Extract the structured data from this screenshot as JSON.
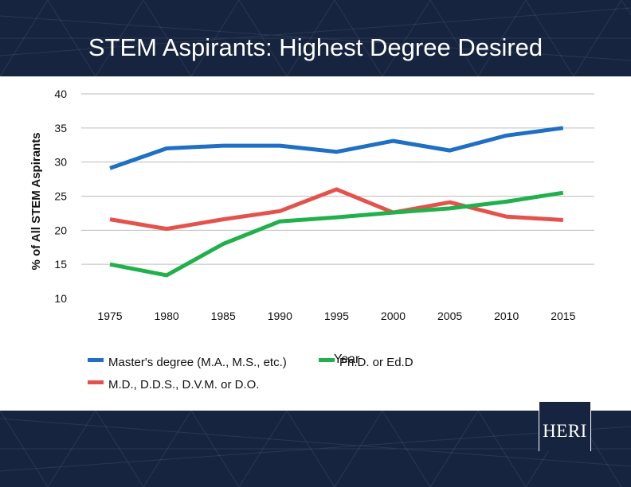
{
  "slide": {
    "logo_text": "HERI"
  },
  "colors": {
    "banner": "#17243f",
    "masters": "#1f6fc5",
    "phd": "#20b04c",
    "md": "#e4534b",
    "grid": "#bdbdbd"
  },
  "chart_data": {
    "type": "line",
    "title": "STEM Aspirants: Highest Degree Desired",
    "xlabel": "Year",
    "ylabel": "% of All STEM Aspirants",
    "categories": [
      "1975",
      "1980",
      "1985",
      "1990",
      "1995",
      "2000",
      "2005",
      "2010",
      "2015"
    ],
    "ylim": [
      10,
      40
    ],
    "yticks": [
      "10",
      "15",
      "20",
      "25",
      "30",
      "35",
      "40"
    ],
    "grid": true,
    "legend_position": "bottom",
    "series": [
      {
        "name": "Master's degree (M.A., M.S., etc.)",
        "color": "#1f6fc5",
        "values": [
          29.1,
          32.0,
          32.4,
          32.4,
          31.5,
          33.1,
          31.7,
          33.9,
          35.0
        ]
      },
      {
        "name": "Ph.D. or Ed.D",
        "color": "#20b04c",
        "values": [
          15.0,
          13.4,
          18.0,
          21.3,
          21.9,
          22.6,
          23.2,
          24.2,
          25.5
        ]
      },
      {
        "name": "M.D., D.D.S., D.V.M. or D.O.",
        "color": "#e4534b",
        "values": [
          21.6,
          20.2,
          21.6,
          22.8,
          26.0,
          22.6,
          24.1,
          22.0,
          21.5
        ]
      }
    ]
  }
}
